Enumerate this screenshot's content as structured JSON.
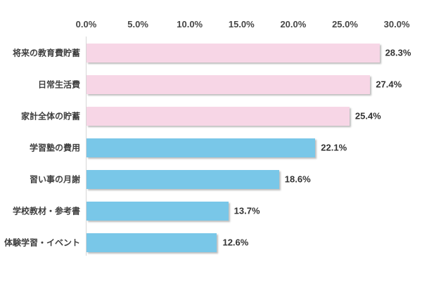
{
  "chart_data": {
    "type": "bar",
    "orientation": "horizontal",
    "title": "",
    "xlabel": "",
    "ylabel": "",
    "xlim": [
      0,
      30
    ],
    "grid": false,
    "legend": "none",
    "axis_position": "top",
    "x_ticks": [
      "0.0%",
      "5.0%",
      "10.0%",
      "15.0%",
      "20.0%",
      "25.0%",
      "30.0%"
    ],
    "x_tick_values": [
      0,
      5,
      10,
      15,
      20,
      25,
      30
    ],
    "categories": [
      "将来の教育費貯蓄",
      "日常生活費",
      "家計全体の貯蓄",
      "学習塾の費用",
      "習い事の月謝",
      "学校教材・参考書",
      "体験学習・イベント"
    ],
    "values": [
      28.3,
      27.4,
      25.4,
      22.1,
      18.6,
      13.7,
      12.6
    ],
    "value_labels": [
      "28.3%",
      "27.4%",
      "25.4%",
      "22.1%",
      "18.6%",
      "13.7%",
      "12.6%"
    ],
    "bar_color_keys": [
      "pink",
      "pink",
      "pink",
      "blue",
      "blue",
      "blue",
      "blue"
    ],
    "colors": {
      "pink": "#f7d6e6",
      "blue": "#79c7e8",
      "axis_line": "#d6d6d6",
      "text": "#3f3f3f",
      "background": "#ffffff"
    }
  }
}
